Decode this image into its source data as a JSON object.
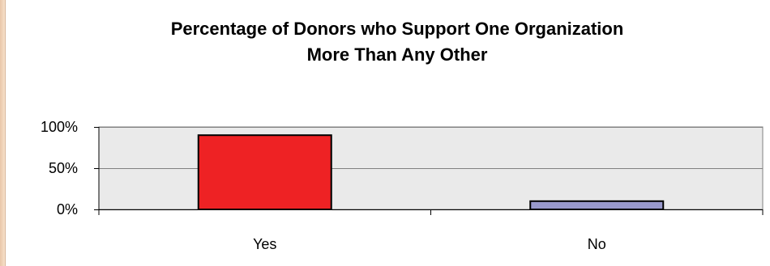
{
  "chart_data": {
    "type": "bar",
    "title": "Percentage of Donors who Support One Organization",
    "subtitle": "More Than Any Other",
    "categories": [
      "Yes",
      "No"
    ],
    "values": [
      90,
      10
    ],
    "ylim": [
      0,
      100
    ],
    "yticks": [
      "100%",
      "50%",
      "0%"
    ],
    "ytick_values": [
      100,
      50,
      0
    ],
    "xlabel": "",
    "ylabel": "",
    "grid": true,
    "legend": "none",
    "colors": [
      "#ee2224",
      "#9999cc"
    ],
    "plot_background": "#eaeaea"
  }
}
